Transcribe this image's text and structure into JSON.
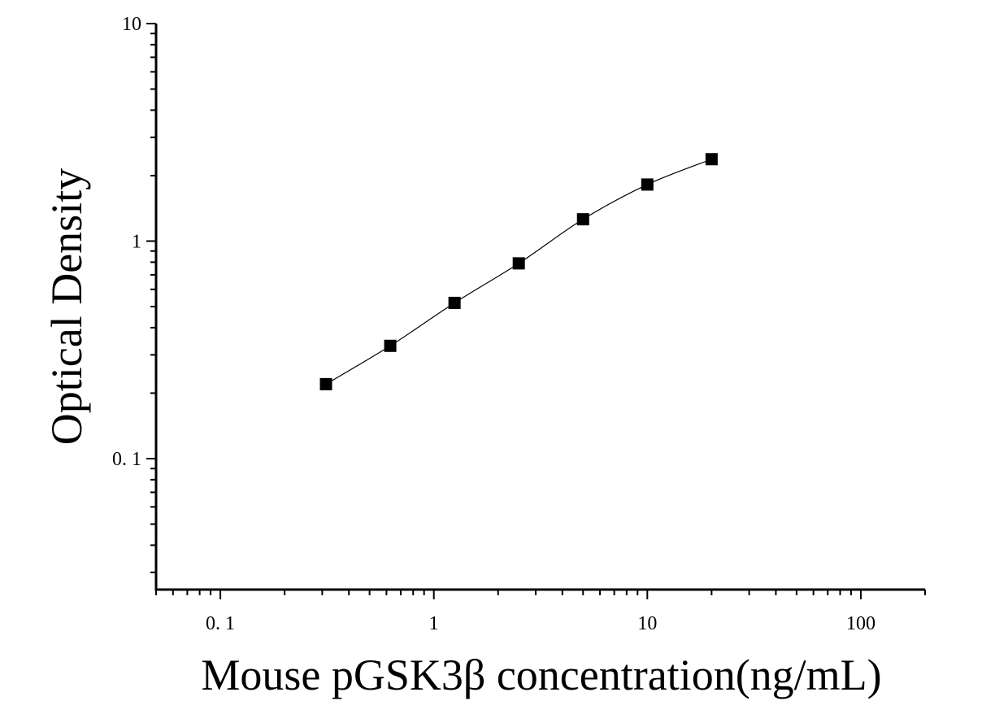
{
  "chart_data": {
    "type": "scatter",
    "title": "",
    "xlabel": "Mouse pGSK3β concentration(ng/mL)",
    "ylabel": "Optical Density",
    "x_scale": "log",
    "y_scale": "log",
    "xlim": [
      0.05,
      200
    ],
    "ylim": [
      0.025,
      10
    ],
    "x_ticks": [
      {
        "value": 0.1,
        "label": "0. 1"
      },
      {
        "value": 1,
        "label": "1"
      },
      {
        "value": 10,
        "label": "10"
      },
      {
        "value": 100,
        "label": "100"
      }
    ],
    "y_ticks": [
      {
        "value": 0.1,
        "label": "0. 1"
      },
      {
        "value": 1,
        "label": "1"
      },
      {
        "value": 10,
        "label": "10"
      }
    ],
    "grid": false,
    "legend": "none",
    "series": [
      {
        "x": [
          0.3125,
          0.625,
          1.25,
          2.5,
          5,
          10,
          20
        ],
        "y": [
          0.22,
          0.33,
          0.52,
          0.79,
          1.26,
          1.82,
          2.38
        ],
        "marker": "square",
        "color": "#000000",
        "fit_curve": true
      }
    ]
  }
}
